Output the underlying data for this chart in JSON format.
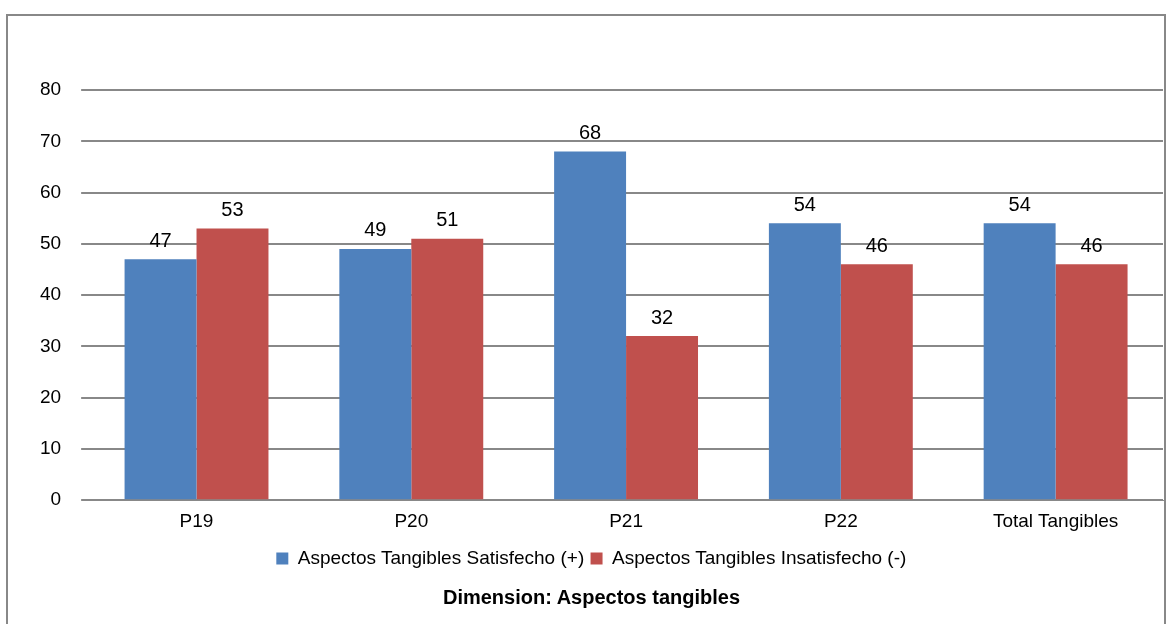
{
  "chart_data": {
    "type": "bar",
    "xlabel": "Dimension: Aspectos tangibles",
    "categories": [
      "P19",
      "P20",
      "P21",
      "P22",
      "Total Tangibles"
    ],
    "series": [
      {
        "name": "Aspectos Tangibles Satisfecho (+)",
        "color": "#4f81bd",
        "values": [
          47,
          49,
          68,
          54,
          54
        ]
      },
      {
        "name": "Aspectos Tangibles Insatisfecho (-)",
        "color": "#c0504d",
        "values": [
          53,
          51,
          32,
          46,
          46
        ]
      }
    ],
    "ylim": [
      0,
      80
    ],
    "yticks": [
      0,
      10,
      20,
      30,
      40,
      50,
      60,
      70,
      80
    ],
    "grid": "y",
    "legend": "bottom",
    "data_labels": true
  }
}
